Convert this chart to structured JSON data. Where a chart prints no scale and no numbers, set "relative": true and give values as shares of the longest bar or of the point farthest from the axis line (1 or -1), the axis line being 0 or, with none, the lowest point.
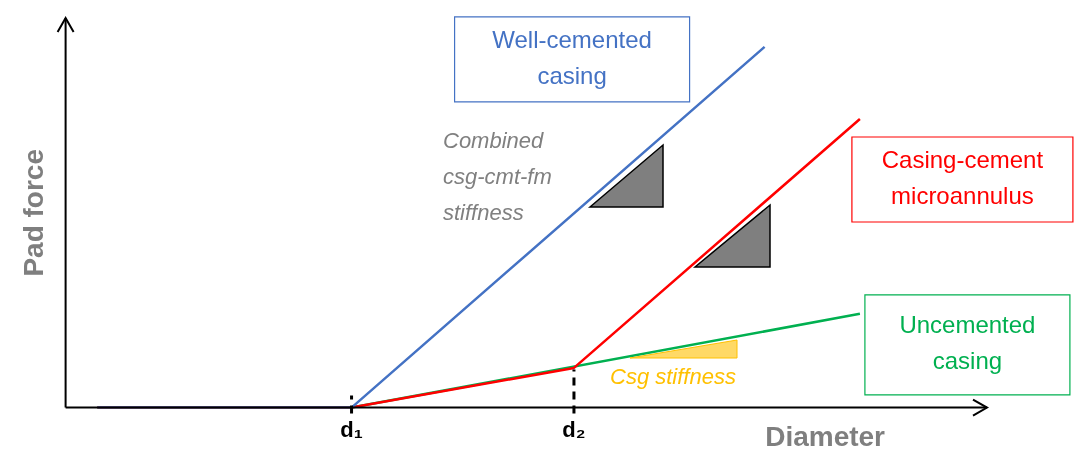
{
  "chart_data": {
    "type": "line",
    "relative": true,
    "xlabel": "Diameter",
    "ylabel": "Pad force",
    "categories": [
      null,
      null,
      null,
      null,
      null,
      null,
      null,
      null,
      null,
      "d₁",
      null,
      null,
      null,
      null,
      null,
      null,
      "d₂",
      null,
      null,
      null,
      null,
      null,
      null,
      null,
      null,
      null,
      null,
      null,
      null,
      null
    ],
    "series": [
      {
        "name": "Well-cemented casing",
        "color": "#4472c4",
        "values": [
          null,
          0,
          null,
          null,
          null,
          null,
          null,
          null,
          null,
          0,
          null,
          null,
          null,
          null,
          null,
          null,
          null,
          null,
          null,
          null,
          null,
          null,
          1,
          null,
          null,
          null,
          null,
          null,
          null,
          null
        ]
      },
      {
        "name": "Casing-cement microannulus",
        "color": "#ff0000",
        "values": [
          null,
          0,
          null,
          null,
          null,
          null,
          null,
          null,
          null,
          0,
          null,
          null,
          null,
          null,
          null,
          null,
          0.11,
          null,
          null,
          null,
          null,
          null,
          null,
          null,
          null,
          0.8,
          null,
          null,
          null,
          null
        ]
      },
      {
        "name": "Uncemented casing",
        "color": "#00b050",
        "values": [
          null,
          0,
          null,
          null,
          null,
          null,
          null,
          null,
          null,
          0,
          null,
          null,
          null,
          null,
          null,
          null,
          null,
          null,
          null,
          null,
          null,
          null,
          null,
          null,
          null,
          0.26,
          null,
          null,
          null,
          null
        ]
      }
    ],
    "annotations": [
      "Combined csg-cmt-fm stiffness",
      "Csg stiffness"
    ]
  }
}
